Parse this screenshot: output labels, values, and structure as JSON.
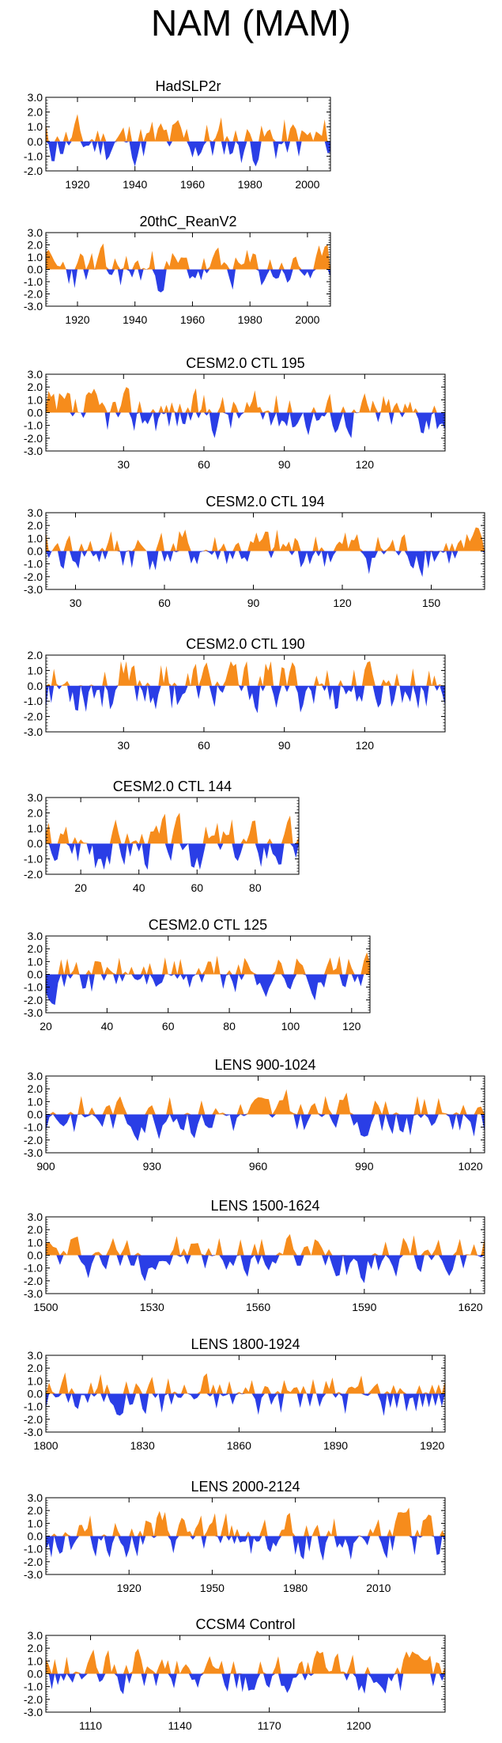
{
  "page_title": "NAM (MAM)",
  "colors": {
    "positive": "#f68c1c",
    "negative": "#2a3ee6",
    "axis": "#000000"
  },
  "chart_data": [
    {
      "type": "area",
      "title": "HadSLP2r",
      "ylim": [
        -2.0,
        3.0
      ],
      "yticks": [
        "3.0",
        "2.0",
        "1.0",
        "0.0",
        "-1.0",
        "-2.0"
      ],
      "xlim": [
        1909,
        2008
      ],
      "xticks": [
        1920,
        1940,
        1960,
        1980,
        2000
      ],
      "grid": false,
      "seed": 11
    },
    {
      "type": "area",
      "title": "20thC_ReanV2",
      "ylim": [
        -3.0,
        3.0
      ],
      "yticks": [
        "3.0",
        "2.0",
        "1.0",
        "0.0",
        "-1.0",
        "-2.0",
        "-3.0"
      ],
      "xlim": [
        1909,
        2008
      ],
      "xticks": [
        1920,
        1940,
        1960,
        1980,
        2000
      ],
      "grid": false,
      "seed": 23
    },
    {
      "type": "area",
      "title": "CESM2.0 CTL 195",
      "ylim": [
        -3.0,
        3.0
      ],
      "yticks": [
        "3.0",
        "2.0",
        "1.0",
        "0.0",
        "-1.0",
        "-2.0",
        "-3.0"
      ],
      "xlim": [
        1,
        150
      ],
      "xticks": [
        30,
        60,
        90,
        120
      ],
      "grid": false,
      "seed": 37
    },
    {
      "type": "area",
      "title": "CESM2.0 CTL 194",
      "ylim": [
        -3.0,
        3.0
      ],
      "yticks": [
        "3.0",
        "2.0",
        "1.0",
        "0.0",
        "-1.0",
        "-2.0",
        "-3.0"
      ],
      "xlim": [
        20,
        168
      ],
      "xticks": [
        30,
        60,
        90,
        120,
        150
      ],
      "grid": false,
      "seed": 41
    },
    {
      "type": "area",
      "title": "CESM2.0 CTL 190",
      "ylim": [
        -3.0,
        2.0
      ],
      "yticks": [
        "2.0",
        "1.0",
        "0.0",
        "-1.0",
        "-2.0",
        "-3.0"
      ],
      "xlim": [
        1,
        150
      ],
      "xticks": [
        30,
        60,
        90,
        120
      ],
      "grid": false,
      "seed": 53
    },
    {
      "type": "area",
      "title": "CESM2.0 CTL 144",
      "ylim": [
        -2.0,
        3.0
      ],
      "yticks": [
        "3.0",
        "2.0",
        "1.0",
        "0.0",
        "-1.0",
        "-2.0"
      ],
      "xlim": [
        8,
        95
      ],
      "xticks": [
        20,
        40,
        60,
        80
      ],
      "grid": false,
      "seed": 67
    },
    {
      "type": "area",
      "title": "CESM2.0 CTL 125",
      "ylim": [
        -3.0,
        3.0
      ],
      "yticks": [
        "3.0",
        "2.0",
        "1.0",
        "0.0",
        "-1.0",
        "-2.0",
        "-3.0"
      ],
      "xlim": [
        20,
        126
      ],
      "xticks": [
        20,
        40,
        60,
        80,
        100,
        120
      ],
      "grid": false,
      "seed": 71
    },
    {
      "type": "area",
      "title": "LENS 900-1024",
      "ylim": [
        -3.0,
        3.0
      ],
      "yticks": [
        "3.0",
        "2.0",
        "1.0",
        "0.0",
        "-1.0",
        "-2.0",
        "-3.0"
      ],
      "xlim": [
        900,
        1024
      ],
      "xticks": [
        900,
        930,
        960,
        990,
        1020
      ],
      "grid": false,
      "seed": 83
    },
    {
      "type": "area",
      "title": "LENS 1500-1624",
      "ylim": [
        -3.0,
        3.0
      ],
      "yticks": [
        "3.0",
        "2.0",
        "1.0",
        "0.0",
        "-1.0",
        "-2.0",
        "-3.0"
      ],
      "xlim": [
        1500,
        1624
      ],
      "xticks": [
        1500,
        1530,
        1560,
        1590,
        1620
      ],
      "grid": false,
      "seed": 97
    },
    {
      "type": "area",
      "title": "LENS 1800-1924",
      "ylim": [
        -3.0,
        3.0
      ],
      "yticks": [
        "3.0",
        "2.0",
        "1.0",
        "0.0",
        "-1.0",
        "-2.0",
        "-3.0"
      ],
      "xlim": [
        1800,
        1924
      ],
      "xticks": [
        1800,
        1830,
        1860,
        1890,
        1920
      ],
      "grid": false,
      "seed": 101
    },
    {
      "type": "area",
      "title": "LENS 2000-2124",
      "ylim": [
        -3.0,
        3.0
      ],
      "yticks": [
        "3.0",
        "2.0",
        "1.0",
        "0.0",
        "-1.0",
        "-2.0",
        "-3.0"
      ],
      "xlim": [
        1890,
        2034
      ],
      "xticks": [
        1920,
        1950,
        1980,
        2010
      ],
      "grid": false,
      "seed": 113
    },
    {
      "type": "area",
      "title": "CCSM4 Control",
      "ylim": [
        -3.0,
        3.0
      ],
      "yticks": [
        "3.0",
        "2.0",
        "1.0",
        "0.0",
        "-1.0",
        "-2.0",
        "-3.0"
      ],
      "xlim": [
        1095,
        1229
      ],
      "xticks": [
        1110,
        1140,
        1170,
        1200
      ],
      "grid": false,
      "seed": 127
    }
  ]
}
